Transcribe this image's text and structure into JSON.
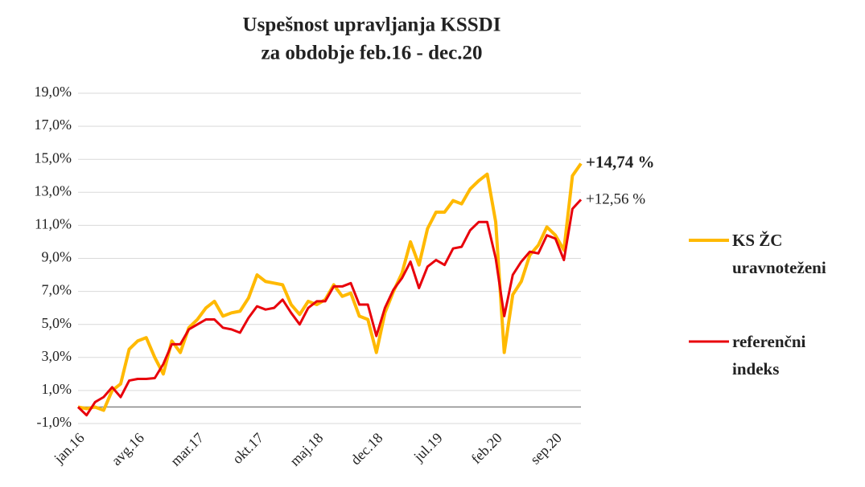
{
  "chart_data": {
    "type": "line",
    "title": [
      "Uspešnost upravljanja KSSDI",
      "za obdobje feb.16 - dec.20"
    ],
    "categories": [
      "jan.16",
      null,
      null,
      null,
      null,
      null,
      null,
      "avg.16",
      null,
      null,
      null,
      null,
      null,
      null,
      "mar.17",
      null,
      null,
      null,
      null,
      null,
      null,
      "okt.17",
      null,
      null,
      null,
      null,
      null,
      null,
      "maj.18",
      null,
      null,
      null,
      null,
      null,
      null,
      "dec.18",
      null,
      null,
      null,
      null,
      null,
      null,
      "jul.19",
      null,
      null,
      null,
      null,
      null,
      null,
      "feb.20",
      null,
      null,
      null,
      null,
      null,
      null,
      "sep.20",
      null,
      null,
      null
    ],
    "series": [
      {
        "name": "KS ŽC uravnoteženi",
        "color": "#ffb900",
        "values": [
          0.0,
          -0.1,
          0.0,
          -0.2,
          1.0,
          1.4,
          3.5,
          4.0,
          4.2,
          3.0,
          2.0,
          4.0,
          3.3,
          4.8,
          5.3,
          6.0,
          6.4,
          5.5,
          5.7,
          5.8,
          6.6,
          8.0,
          7.6,
          7.5,
          7.4,
          6.2,
          5.6,
          6.4,
          6.2,
          6.5,
          7.4,
          6.7,
          6.9,
          5.5,
          5.3,
          3.3,
          5.7,
          7.0,
          8.1,
          10.0,
          8.6,
          10.8,
          11.8,
          11.8,
          12.5,
          12.3,
          13.2,
          13.7,
          14.1,
          11.2,
          3.3,
          6.8,
          7.6,
          9.2,
          9.8,
          10.9,
          10.4,
          9.5,
          14.0,
          14.74
        ]
      },
      {
        "name": "referenčni indeks",
        "color": "#e8000b",
        "values": [
          0.0,
          -0.5,
          0.3,
          0.6,
          1.2,
          0.6,
          1.6,
          1.7,
          1.7,
          1.75,
          2.6,
          3.8,
          3.8,
          4.7,
          5.0,
          5.3,
          5.3,
          4.8,
          4.7,
          4.5,
          5.4,
          6.1,
          5.9,
          6.0,
          6.5,
          5.7,
          5.0,
          6.0,
          6.4,
          6.4,
          7.3,
          7.3,
          7.5,
          6.2,
          6.2,
          4.3,
          6.0,
          7.1,
          7.8,
          8.8,
          7.2,
          8.5,
          8.9,
          8.6,
          9.6,
          9.7,
          10.7,
          11.2,
          11.2,
          9.0,
          5.5,
          8.0,
          8.8,
          9.4,
          9.3,
          10.4,
          10.2,
          8.9,
          12.0,
          12.56
        ]
      }
    ],
    "annotations": [
      {
        "text": "+14,74 %",
        "series": 0
      },
      {
        "text": "+12,56 %",
        "series": 1
      }
    ],
    "ylim": [
      -1,
      19
    ],
    "yticks": [
      {
        "value": -1,
        "label": "-1,0%"
      },
      {
        "value": 1,
        "label": "1,0%"
      },
      {
        "value": 3,
        "label": "3,0%"
      },
      {
        "value": 5,
        "label": "5,0%"
      },
      {
        "value": 7,
        "label": "7,0%"
      },
      {
        "value": 9,
        "label": "9,0%"
      },
      {
        "value": 11,
        "label": "11,0%"
      },
      {
        "value": 13,
        "label": "13,0%"
      },
      {
        "value": 15,
        "label": "15,0%"
      },
      {
        "value": 17,
        "label": "17,0%"
      },
      {
        "value": 19,
        "label": "19,0%"
      }
    ],
    "grid": true,
    "legend": "right"
  }
}
